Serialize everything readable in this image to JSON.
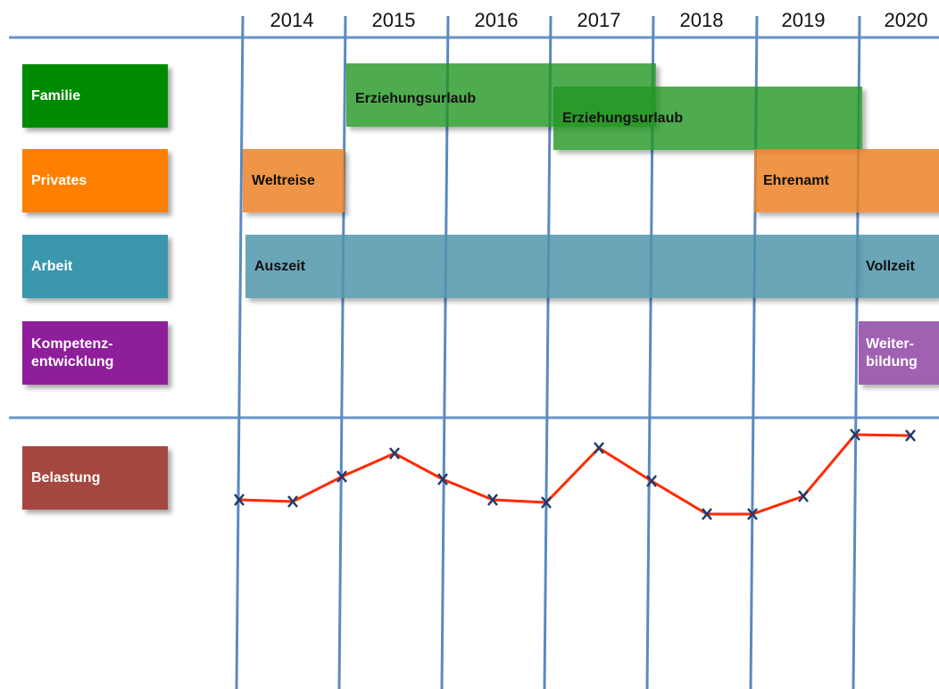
{
  "years": [
    "2014",
    "2015",
    "2016",
    "2017",
    "2018",
    "2019",
    "2020"
  ],
  "rows": [
    {
      "label": [
        "Familie"
      ],
      "bars": [
        {
          "text": [
            "Erziehungsurlaub"
          ]
        },
        {
          "text": [
            "Erziehungsurlaub"
          ]
        }
      ]
    },
    {
      "label": [
        "Privates"
      ],
      "bars": [
        {
          "text": [
            "Weltreise"
          ]
        },
        {
          "text": [
            "Ehrenamt"
          ]
        }
      ]
    },
    {
      "label": [
        "Arbeit"
      ],
      "bars": [
        {
          "text": [
            "Auszeit"
          ]
        },
        {
          "text": [
            "Vollzeit"
          ]
        }
      ]
    },
    {
      "label": [
        "Kompetenz-",
        "entwicklung"
      ],
      "bars": [
        {
          "text": [
            "Weiter-",
            "bildung"
          ]
        }
      ]
    },
    {
      "label": [
        "Belastung"
      ],
      "bars": []
    }
  ]
}
